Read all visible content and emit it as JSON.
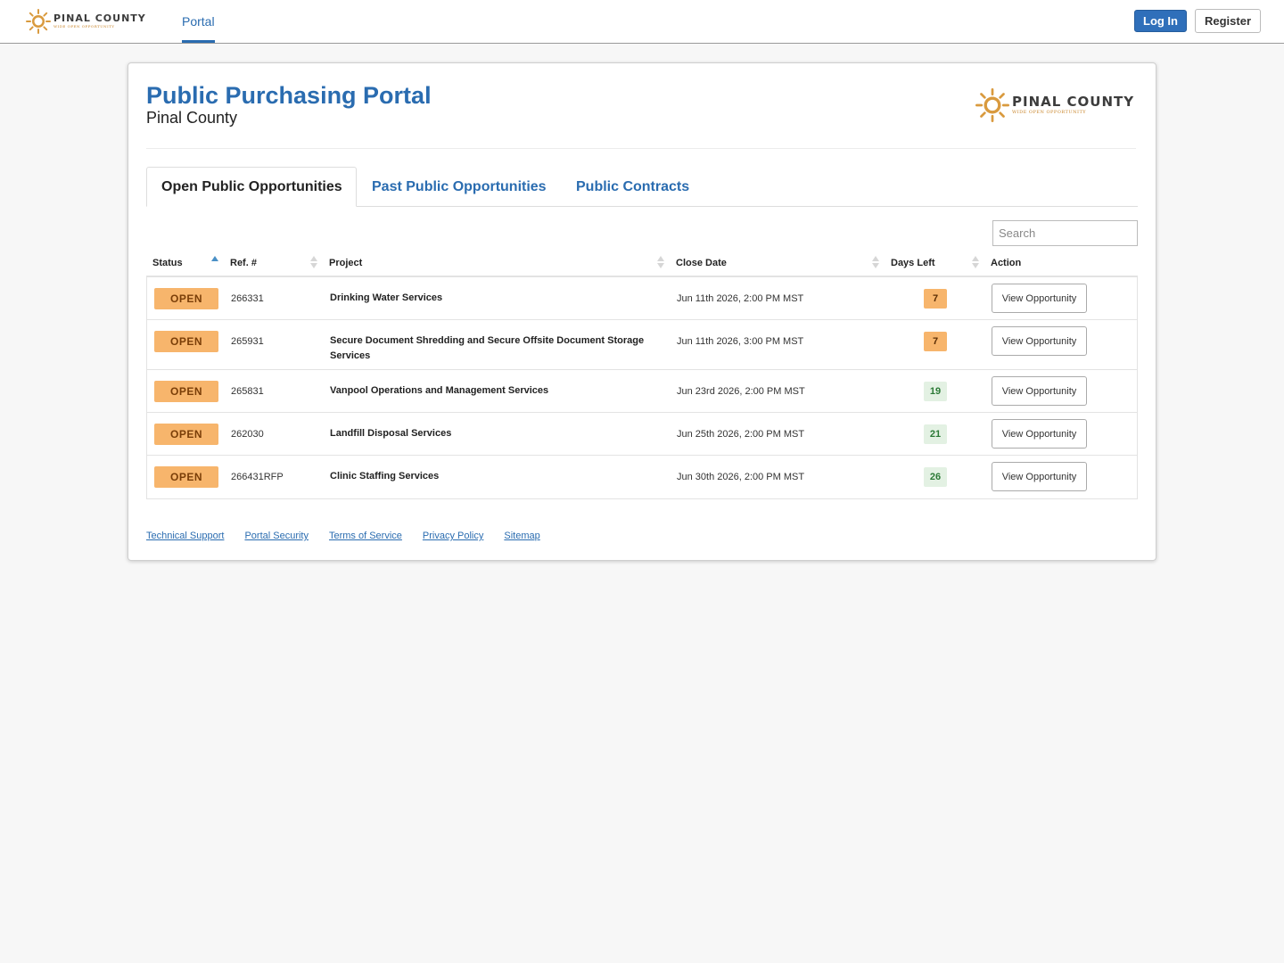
{
  "nav": {
    "logo_name": "PINAL COUNTY",
    "logo_tagline": "WIDE OPEN OPPORTUNITY",
    "portal_label": "Portal",
    "login_label": "Log In",
    "register_label": "Register"
  },
  "header": {
    "title": "Public Purchasing Portal",
    "subtitle": "Pinal County",
    "logo_name": "PINAL COUNTY",
    "logo_tagline": "WIDE OPEN OPPORTUNITY"
  },
  "tabs": [
    {
      "label": "Open Public Opportunities",
      "active": true
    },
    {
      "label": "Past Public Opportunities",
      "active": false
    },
    {
      "label": "Public Contracts",
      "active": false
    }
  ],
  "search": {
    "placeholder": "Search"
  },
  "table": {
    "columns": [
      "Status",
      "Ref. #",
      "Project",
      "Close Date",
      "Days Left",
      "Action"
    ],
    "rows": [
      {
        "status": "OPEN",
        "ref": "266331",
        "project": "Drinking Water Services",
        "close_date": "Jun 11th 2026, 2:00 PM MST",
        "days_left": "7",
        "action": "View Opportunity"
      },
      {
        "status": "OPEN",
        "ref": "265931",
        "project": "Secure Document Shredding and Secure Offsite Document Storage Services",
        "close_date": "Jun 11th 2026, 3:00 PM MST",
        "days_left": "7",
        "action": "View Opportunity"
      },
      {
        "status": "OPEN",
        "ref": "265831",
        "project": "Vanpool Operations and Management Services",
        "close_date": "Jun 23rd 2026, 2:00 PM MST",
        "days_left": "19",
        "action": "View Opportunity"
      },
      {
        "status": "OPEN",
        "ref": "262030",
        "project": "Landfill Disposal Services",
        "close_date": "Jun 25th 2026, 2:00 PM MST",
        "days_left": "21",
        "action": "View Opportunity"
      },
      {
        "status": "OPEN",
        "ref": "266431RFP",
        "project": "Clinic Staffing Services",
        "close_date": "Jun 30th 2026, 2:00 PM MST",
        "days_left": "26",
        "action": "View Opportunity"
      }
    ]
  },
  "footer": {
    "links": [
      "Technical Support",
      "Portal Security",
      "Terms of Service",
      "Privacy Policy",
      "Sitemap"
    ]
  },
  "colors": {
    "brand_blue": "#2a6cb0",
    "status_open": "#f7b56c",
    "days_warn": "#f7b56c",
    "days_ok": "#e3f1e3",
    "logo_gold": "#c9852a"
  }
}
